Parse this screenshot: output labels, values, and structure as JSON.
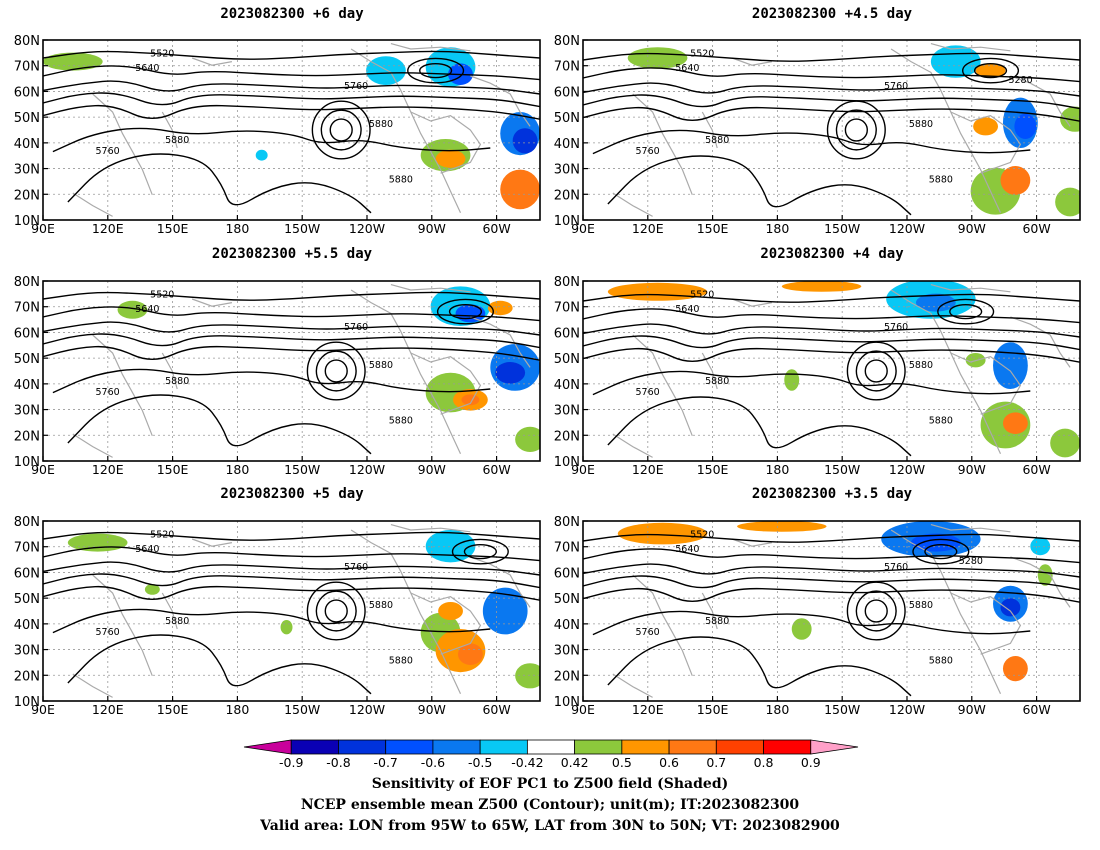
{
  "panels": [
    {
      "title": "2023082300 +6 day"
    },
    {
      "title": "2023082300 +4.5 day"
    },
    {
      "title": "2023082300 +5.5 day"
    },
    {
      "title": "2023082300 +4 day"
    },
    {
      "title": "2023082300 +5 day"
    },
    {
      "title": "2023082300 +3.5 day"
    }
  ],
  "map_axes": {
    "lat_labels": [
      "80N",
      "70N",
      "60N",
      "50N",
      "40N",
      "30N",
      "20N",
      "10N"
    ],
    "lon_labels": [
      "90E",
      "120E",
      "150E",
      "180",
      "150W",
      "120W",
      "90W",
      "60W"
    ]
  },
  "contour_labels": [
    "5520",
    "5640",
    "5760",
    "5880",
    "5280"
  ],
  "colorbar": {
    "tick_labels": [
      "-0.9",
      "-0.8",
      "-0.7",
      "-0.6",
      "-0.5",
      "-0.42",
      "0.42",
      "0.5",
      "0.6",
      "0.7",
      "0.8",
      "0.9"
    ],
    "colors": [
      "#c8009b",
      "#0a00b4",
      "#0032dc",
      "#0050ff",
      "#0a78f0",
      "#08c8f5",
      "#ffffff",
      "#8cc83c",
      "#ff9600",
      "#ff7814",
      "#ff4100",
      "#ff0000",
      "#ffa0c8"
    ]
  },
  "caption": {
    "line1": "Sensitivity of EOF PC1 to Z500 field (Shaded)",
    "line2": "NCEP ensemble mean Z500 (Contour); unit(m); IT:2023082300",
    "line3": "Valid area: LON from 95W to 65W, LAT from 30N to 50N; VT: 2023082900"
  }
}
